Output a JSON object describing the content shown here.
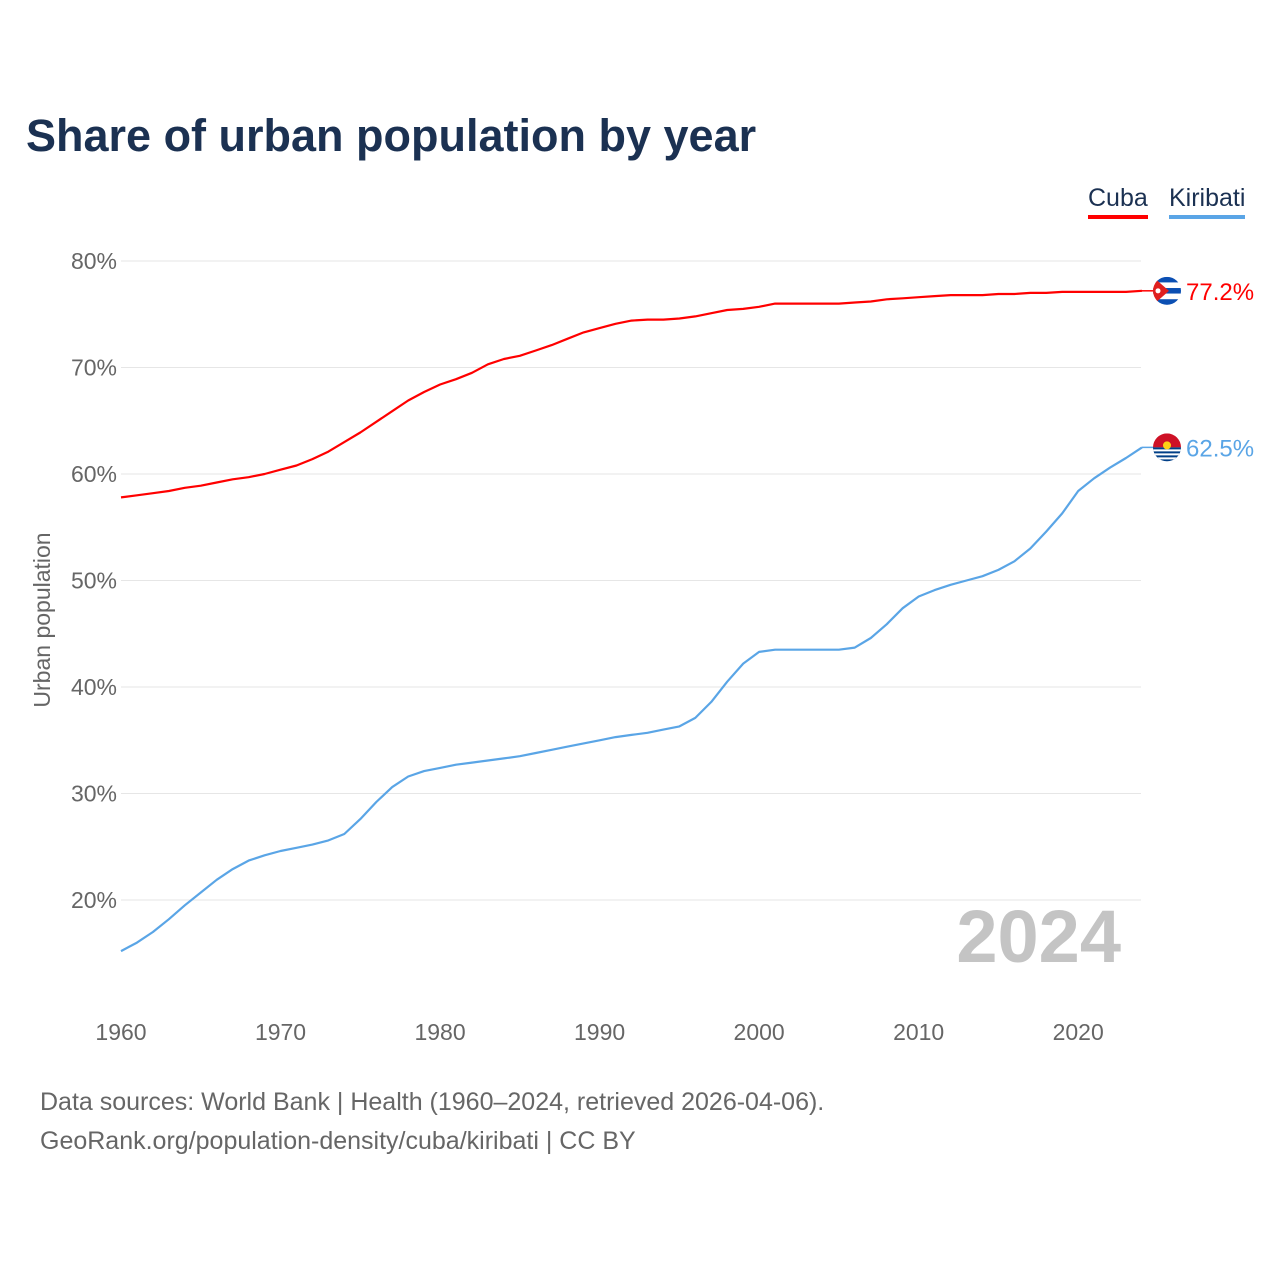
{
  "chart_data": {
    "type": "line",
    "title": "Share of urban population by year",
    "ylabel": "Urban population",
    "xlabel": "",
    "ylim": [
      13,
      80
    ],
    "xlim": [
      1960,
      2024
    ],
    "yticks": [
      "20%",
      "30%",
      "40%",
      "50%",
      "60%",
      "70%",
      "80%"
    ],
    "ytick_values": [
      20,
      30,
      40,
      50,
      60,
      70,
      80
    ],
    "xticks": [
      "1960",
      "1970",
      "1980",
      "1990",
      "2000",
      "2010",
      "2020"
    ],
    "xtick_values": [
      1960,
      1970,
      1980,
      1990,
      2000,
      2010,
      2020
    ],
    "grid": true,
    "legend_placement": "top-right",
    "year_watermark": "2024",
    "x": [
      1960,
      1961,
      1962,
      1963,
      1964,
      1965,
      1966,
      1967,
      1968,
      1969,
      1970,
      1971,
      1972,
      1973,
      1974,
      1975,
      1976,
      1977,
      1978,
      1979,
      1980,
      1981,
      1982,
      1983,
      1984,
      1985,
      1986,
      1987,
      1988,
      1989,
      1990,
      1991,
      1992,
      1993,
      1994,
      1995,
      1996,
      1997,
      1998,
      1999,
      2000,
      2001,
      2002,
      2003,
      2004,
      2005,
      2006,
      2007,
      2008,
      2009,
      2010,
      2011,
      2012,
      2013,
      2014,
      2015,
      2016,
      2017,
      2018,
      2019,
      2020,
      2021,
      2022,
      2023,
      2024
    ],
    "series": [
      {
        "name": "Cuba",
        "color": "#ff0000",
        "end_label": "77.2%",
        "values": [
          57.8,
          58.0,
          58.2,
          58.4,
          58.7,
          58.9,
          59.2,
          59.5,
          59.7,
          60.0,
          60.4,
          60.8,
          61.4,
          62.1,
          63.0,
          63.9,
          64.9,
          65.9,
          66.9,
          67.7,
          68.4,
          68.9,
          69.5,
          70.3,
          70.8,
          71.1,
          71.6,
          72.1,
          72.7,
          73.3,
          73.7,
          74.1,
          74.4,
          74.5,
          74.5,
          74.6,
          74.8,
          75.1,
          75.4,
          75.5,
          75.7,
          76.0,
          76.0,
          76.0,
          76.0,
          76.0,
          76.1,
          76.2,
          76.4,
          76.5,
          76.6,
          76.7,
          76.8,
          76.8,
          76.8,
          76.9,
          76.9,
          77.0,
          77.0,
          77.1,
          77.1,
          77.1,
          77.1,
          77.1,
          77.2
        ]
      },
      {
        "name": "Kiribati",
        "color": "#5aa5e6",
        "end_label": "62.5%",
        "values": [
          15.2,
          16.0,
          17.0,
          18.2,
          19.5,
          20.7,
          21.9,
          22.9,
          23.7,
          24.2,
          24.6,
          24.9,
          25.2,
          25.6,
          26.2,
          27.6,
          29.2,
          30.6,
          31.6,
          32.1,
          32.4,
          32.7,
          32.9,
          33.1,
          33.3,
          33.5,
          33.8,
          34.1,
          34.4,
          34.7,
          35.0,
          35.3,
          35.5,
          35.7,
          36.0,
          36.3,
          37.1,
          38.6,
          40.5,
          42.2,
          43.3,
          43.5,
          43.5,
          43.5,
          43.5,
          43.5,
          43.7,
          44.6,
          45.9,
          47.4,
          48.5,
          49.1,
          49.6,
          50.0,
          50.4,
          51.0,
          51.8,
          53.0,
          54.6,
          56.3,
          58.4,
          59.6,
          60.6,
          61.5,
          62.5
        ]
      }
    ]
  },
  "footer": {
    "line1": "Data sources: World Bank | Health (1960–2024, retrieved 2026-04-06).",
    "line2": "GeoRank.org/population-density/cuba/kiribati | CC BY"
  }
}
